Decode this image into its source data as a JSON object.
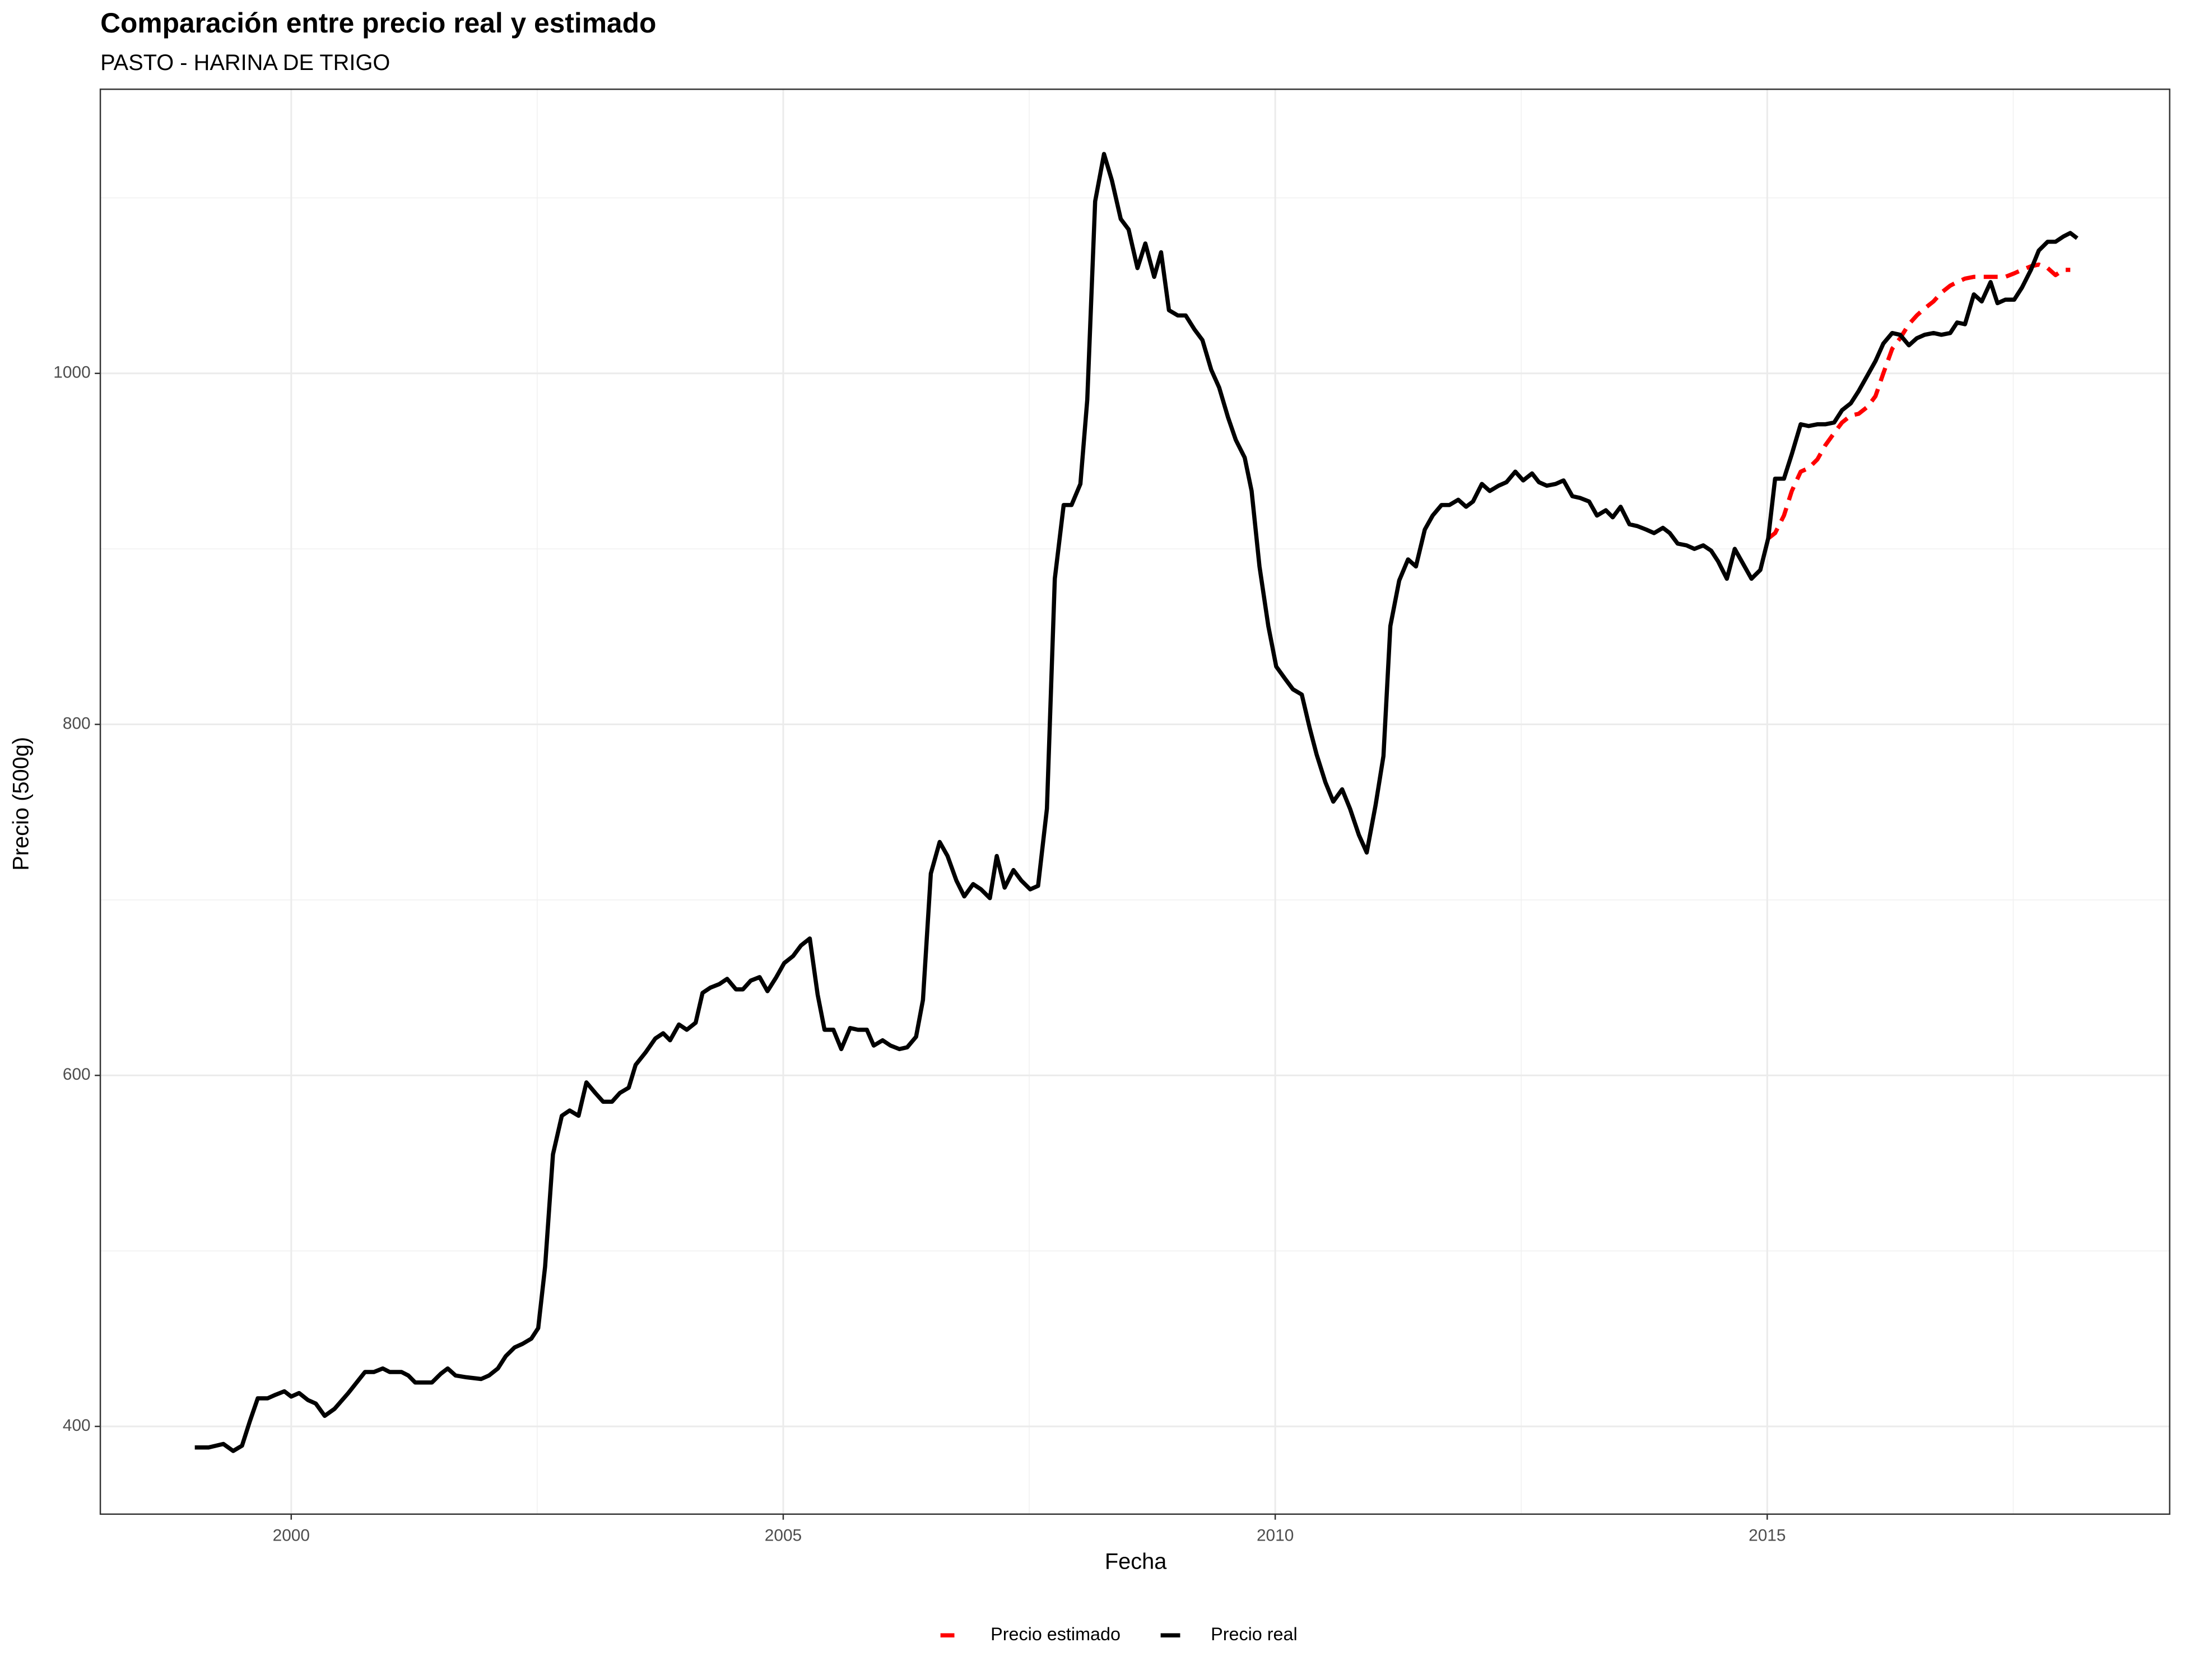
{
  "chart_data": {
    "type": "line",
    "title": "Comparación entre precio real y estimado",
    "subtitle": "PASTO - HARINA DE TRIGO",
    "x_label": "Fecha",
    "y_label": "Precio (500g)",
    "xlim": [
      1998.06,
      2019.09
    ],
    "ylim": [
      350,
      1161.9
    ],
    "xticks": [
      2000,
      2005,
      2010,
      2015
    ],
    "yticks": [
      400,
      600,
      800,
      1000
    ],
    "xminorticks": [
      2002.5,
      2007.5,
      2012.5,
      2017.5
    ],
    "yminorticks": [
      500,
      700,
      900,
      1100
    ],
    "grid": true,
    "legend": "bottom",
    "series": [
      {
        "name": "Precio estimado",
        "color": "#ff0000",
        "dashed": true,
        "x": [
          2015.01,
          2015.08,
          2015.17,
          2015.25,
          2015.34,
          2015.42,
          2015.51,
          2015.59,
          2015.68,
          2015.76,
          2015.85,
          2015.93,
          2016.02,
          2016.1,
          2016.18,
          2016.27,
          2016.35,
          2016.44,
          2016.52,
          2016.6,
          2016.69,
          2016.77,
          2016.86,
          2016.93,
          2017.01,
          2017.1,
          2017.18,
          2017.27,
          2017.34,
          2017.42,
          2017.51,
          2017.59,
          2017.68,
          2017.76,
          2017.85,
          2017.93,
          2018.01,
          2018.08
        ],
        "values": [
          906,
          909,
          919,
          933,
          944,
          946,
          951,
          959,
          966,
          972,
          976,
          977,
          981,
          987,
          1000,
          1014,
          1020,
          1028,
          1033,
          1037,
          1041,
          1046,
          1050,
          1052,
          1054,
          1055,
          1055,
          1055,
          1055,
          1055,
          1057,
          1059,
          1061,
          1062,
          1060,
          1056,
          1059,
          1059
        ]
      },
      {
        "name": "Precio real",
        "color": "#000000",
        "dashed": false,
        "x": [
          1999.02,
          1999.16,
          1999.31,
          1999.41,
          1999.5,
          1999.58,
          1999.66,
          1999.76,
          1999.84,
          1999.93,
          2000.0,
          2000.08,
          2000.17,
          2000.25,
          2000.34,
          2000.44,
          2000.58,
          2000.75,
          2000.84,
          2000.93,
          2001.0,
          2001.12,
          2001.19,
          2001.26,
          2001.35,
          2001.43,
          2001.52,
          2001.59,
          2001.67,
          2001.78,
          2001.93,
          2002.01,
          2002.1,
          2002.18,
          2002.27,
          2002.35,
          2002.44,
          2002.51,
          2002.58,
          2002.66,
          2002.75,
          2002.83,
          2002.92,
          2003.0,
          2003.09,
          2003.17,
          2003.26,
          2003.34,
          2003.43,
          2003.5,
          2003.6,
          2003.7,
          2003.78,
          2003.85,
          2003.94,
          2004.02,
          2004.11,
          2004.18,
          2004.26,
          2004.35,
          2004.43,
          2004.52,
          2004.59,
          2004.67,
          2004.76,
          2004.84,
          2004.93,
          2005.01,
          2005.1,
          2005.18,
          2005.27,
          2005.35,
          2005.42,
          2005.51,
          2005.59,
          2005.68,
          2005.76,
          2005.85,
          2005.92,
          2006.01,
          2006.09,
          2006.18,
          2006.26,
          2006.35,
          2006.42,
          2006.5,
          2006.59,
          2006.67,
          2006.76,
          2006.84,
          2006.93,
          2007.01,
          2007.1,
          2007.17,
          2007.25,
          2007.34,
          2007.42,
          2007.51,
          2007.59,
          2007.68,
          2007.76,
          2007.85,
          2007.93,
          2008.02,
          2008.09,
          2008.17,
          2008.26,
          2008.34,
          2008.43,
          2008.51,
          2008.6,
          2008.68,
          2008.77,
          2008.84,
          2008.92,
          2009.01,
          2009.09,
          2009.18,
          2009.26,
          2009.35,
          2009.43,
          2009.52,
          2009.6,
          2009.69,
          2009.76,
          2009.84,
          2009.93,
          2010.01,
          2010.1,
          2010.18,
          2010.27,
          2010.35,
          2010.42,
          2010.51,
          2010.59,
          2010.68,
          2010.76,
          2010.85,
          2010.93,
          2011.02,
          2011.1,
          2011.17,
          2011.26,
          2011.35,
          2011.43,
          2011.52,
          2011.6,
          2011.69,
          2011.77,
          2011.86,
          2011.94,
          2012.01,
          2012.1,
          2012.18,
          2012.27,
          2012.35,
          2012.44,
          2012.52,
          2012.61,
          2012.68,
          2012.76,
          2012.85,
          2012.93,
          2013.02,
          2013.1,
          2013.19,
          2013.27,
          2013.36,
          2013.43,
          2013.51,
          2013.6,
          2013.68,
          2013.77,
          2013.85,
          2013.94,
          2014.01,
          2014.09,
          2014.18,
          2014.26,
          2014.35,
          2014.43,
          2014.5,
          2014.59,
          2014.67,
          2014.76,
          2014.84,
          2014.93,
          2015.01,
          2015.08,
          2015.17,
          2015.25,
          2015.34,
          2015.42,
          2015.51,
          2015.59,
          2015.68,
          2015.76,
          2015.85,
          2015.93,
          2016.02,
          2016.1,
          2016.18,
          2016.27,
          2016.35,
          2016.44,
          2016.52,
          2016.6,
          2016.69,
          2016.77,
          2016.86,
          2016.93,
          2017.01,
          2017.1,
          2017.18,
          2017.27,
          2017.34,
          2017.42,
          2017.51,
          2017.59,
          2017.68,
          2017.76,
          2017.85,
          2017.93,
          2018.01,
          2018.08,
          2018.15
        ],
        "values": [
          388,
          388,
          390,
          386,
          389,
          403,
          416,
          416,
          418,
          420,
          417,
          419,
          415,
          413,
          406,
          410,
          419,
          431,
          431,
          433,
          431,
          431,
          429,
          425,
          425,
          425,
          430,
          433,
          429,
          428,
          427,
          429,
          433,
          440,
          445,
          447,
          450,
          456,
          491,
          555,
          577,
          580,
          577,
          596,
          590,
          585,
          585,
          590,
          593,
          606,
          613,
          621,
          624,
          620,
          629,
          626,
          630,
          647,
          650,
          652,
          655,
          649,
          649,
          654,
          656,
          648,
          656,
          664,
          668,
          674,
          678,
          646,
          626,
          626,
          615,
          627,
          626,
          626,
          617,
          620,
          617,
          615,
          616,
          622,
          643,
          715,
          733,
          725,
          711,
          702,
          709,
          706,
          701,
          725,
          707,
          717,
          711,
          706,
          708,
          752,
          883,
          925,
          925,
          937,
          985,
          1098,
          1125,
          1110,
          1088,
          1082,
          1060,
          1074,
          1055,
          1069,
          1036,
          1033,
          1033,
          1025,
          1019,
          1002,
          992,
          975,
          962,
          952,
          933,
          890,
          856,
          833,
          826,
          820,
          817,
          798,
          783,
          767,
          756,
          763,
          752,
          737,
          727,
          754,
          782,
          856,
          882,
          894,
          890,
          911,
          919,
          925,
          925,
          928,
          924,
          927,
          937,
          933,
          936,
          938,
          944,
          939,
          943,
          938,
          936,
          937,
          939,
          930,
          929,
          927,
          919,
          922,
          918,
          924,
          914,
          913,
          911,
          909,
          912,
          909,
          903,
          902,
          900,
          902,
          899,
          893,
          883,
          900,
          891,
          883,
          888,
          906,
          940,
          940,
          954,
          971,
          970,
          971,
          971,
          972,
          979,
          983,
          990,
          999,
          1007,
          1017,
          1023,
          1022,
          1016,
          1020,
          1022,
          1023,
          1022,
          1023,
          1029,
          1028,
          1045,
          1041,
          1052,
          1040,
          1042,
          1042,
          1049,
          1059,
          1070,
          1075,
          1075,
          1078,
          1080,
          1077
        ]
      }
    ]
  }
}
